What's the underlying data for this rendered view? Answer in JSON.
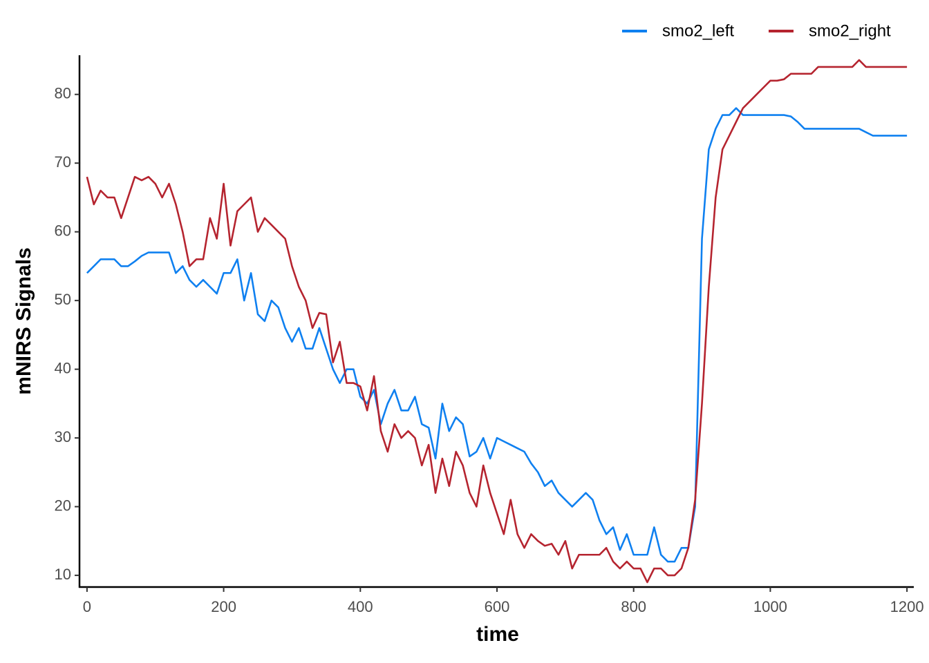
{
  "chart_data": {
    "type": "line",
    "x_label": "time",
    "y_label": "mNIRS Signals",
    "x": [
      0,
      10,
      20,
      30,
      40,
      50,
      60,
      70,
      80,
      90,
      100,
      110,
      120,
      130,
      140,
      150,
      160,
      170,
      180,
      190,
      200,
      210,
      220,
      230,
      240,
      250,
      260,
      270,
      280,
      290,
      300,
      310,
      320,
      330,
      340,
      350,
      360,
      370,
      380,
      390,
      400,
      410,
      420,
      430,
      440,
      450,
      460,
      470,
      480,
      490,
      500,
      510,
      520,
      530,
      540,
      550,
      560,
      570,
      580,
      590,
      600,
      610,
      620,
      630,
      640,
      650,
      660,
      670,
      680,
      690,
      700,
      710,
      720,
      730,
      740,
      750,
      760,
      770,
      780,
      790,
      800,
      810,
      820,
      830,
      840,
      850,
      860,
      870,
      880,
      890,
      900,
      910,
      920,
      930,
      940,
      950,
      960,
      970,
      980,
      990,
      1000,
      1010,
      1020,
      1030,
      1040,
      1050,
      1060,
      1070,
      1080,
      1090,
      1100,
      1110,
      1120,
      1130,
      1140,
      1150,
      1160,
      1170,
      1180,
      1190,
      1200
    ],
    "series": [
      {
        "name": "smo2_left",
        "color": "#0f80f0",
        "values": [
          54,
          55,
          56,
          56,
          56,
          55,
          55,
          55.7,
          56.5,
          57,
          57,
          57,
          57,
          54,
          55,
          53,
          52,
          53,
          52,
          51,
          54,
          54,
          56,
          50,
          54,
          48,
          47,
          50,
          49,
          46,
          44,
          46,
          43,
          43,
          46,
          43,
          40,
          38,
          40,
          40,
          36,
          35,
          37,
          32,
          35,
          37,
          34,
          34,
          36,
          32,
          31.5,
          27,
          35,
          31,
          33,
          32,
          27.3,
          28,
          30,
          27,
          30,
          29.5,
          29,
          28.5,
          28,
          26.3,
          25,
          23,
          23.8,
          22,
          21,
          20,
          21,
          22,
          21,
          18,
          16,
          17,
          13.7,
          16,
          13,
          13,
          13,
          17,
          13,
          12,
          12,
          14,
          14,
          20,
          59,
          72,
          75,
          77,
          77,
          78,
          77,
          77,
          77,
          77,
          77,
          77,
          77,
          76.8,
          76,
          75,
          75,
          75,
          75,
          75,
          75,
          75,
          75,
          75,
          74.5,
          74,
          74,
          74,
          74,
          74,
          74
        ]
      },
      {
        "name": "smo2_right",
        "color": "#b5242f",
        "values": [
          68,
          64,
          66,
          65,
          65,
          62,
          65,
          68,
          67.5,
          68,
          67,
          65,
          67,
          64,
          60,
          55,
          56,
          56,
          62,
          59,
          67,
          58,
          63,
          64,
          65,
          60,
          62,
          61,
          60,
          59,
          55,
          52,
          50,
          46,
          48.2,
          48,
          41,
          44,
          38,
          38,
          37.5,
          34,
          39,
          31,
          28,
          32,
          30,
          31,
          30,
          26,
          29,
          22,
          27,
          23,
          28,
          26,
          22,
          20,
          26,
          22,
          19,
          16,
          21,
          16,
          14,
          16,
          15,
          14.3,
          14.6,
          13,
          15,
          11,
          13,
          13,
          13,
          13,
          14,
          12,
          11,
          12,
          11,
          11,
          9,
          11,
          11,
          10,
          10,
          11,
          14,
          21,
          35,
          52,
          65,
          72,
          74,
          76,
          78,
          79,
          80,
          81,
          82,
          82,
          82.2,
          83,
          83,
          83,
          83,
          84,
          84,
          84,
          84,
          84,
          84,
          85,
          84,
          84,
          84,
          84,
          84,
          84,
          84
        ]
      }
    ],
    "xlim": [
      -11,
      1210
    ],
    "ylim": [
      8.3,
      85.7
    ],
    "xticks": [
      0,
      200,
      400,
      600,
      800,
      1000,
      1200
    ],
    "yticks": [
      10,
      20,
      30,
      40,
      50,
      60,
      70,
      80
    ],
    "legend": "top-right",
    "grid": false
  }
}
